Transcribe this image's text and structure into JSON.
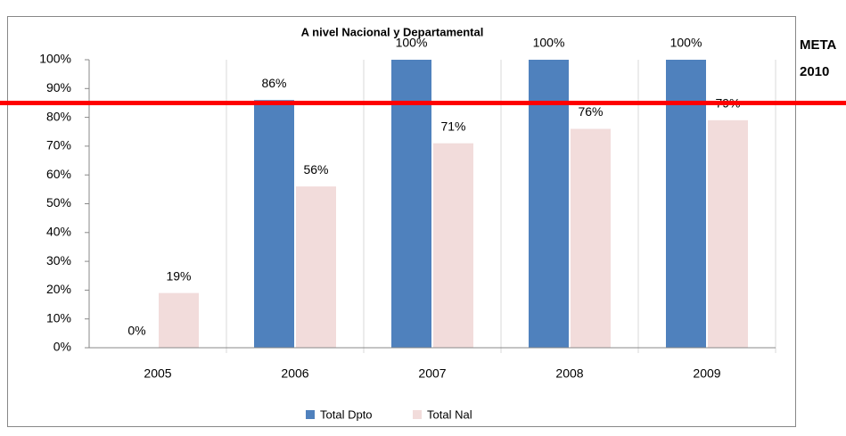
{
  "chart_data": {
    "type": "bar",
    "title": "A nivel Nacional y Departamental",
    "categories": [
      "2005",
      "2006",
      "2007",
      "2008",
      "2009"
    ],
    "series": [
      {
        "name": "Total Dpto",
        "color": "#4f81bd",
        "values": [
          0,
          86,
          100,
          100,
          100
        ],
        "value_labels": [
          "0%",
          "86%",
          "100%",
          "100%",
          "100%"
        ]
      },
      {
        "name": "Total Nal",
        "color": "#f2dcdb",
        "values": [
          19,
          56,
          71,
          76,
          79
        ],
        "value_labels": [
          "19%",
          "56%",
          "71%",
          "76%",
          "79%"
        ]
      }
    ],
    "ylim": [
      0,
      100
    ],
    "yticks": [
      {
        "value": 0,
        "label": "0%"
      },
      {
        "value": 10,
        "label": "10%"
      },
      {
        "value": 20,
        "label": "20%"
      },
      {
        "value": 30,
        "label": "30%"
      },
      {
        "value": 40,
        "label": "40%"
      },
      {
        "value": 50,
        "label": "50%"
      },
      {
        "value": 60,
        "label": "60%"
      },
      {
        "value": 70,
        "label": "70%"
      },
      {
        "value": 80,
        "label": "80%"
      },
      {
        "value": 90,
        "label": "90%"
      },
      {
        "value": 100,
        "label": "100%"
      }
    ],
    "grid": "x",
    "legend": "bottom",
    "target": {
      "label": "META 2010",
      "value": 85,
      "color": "#ff0000"
    }
  }
}
